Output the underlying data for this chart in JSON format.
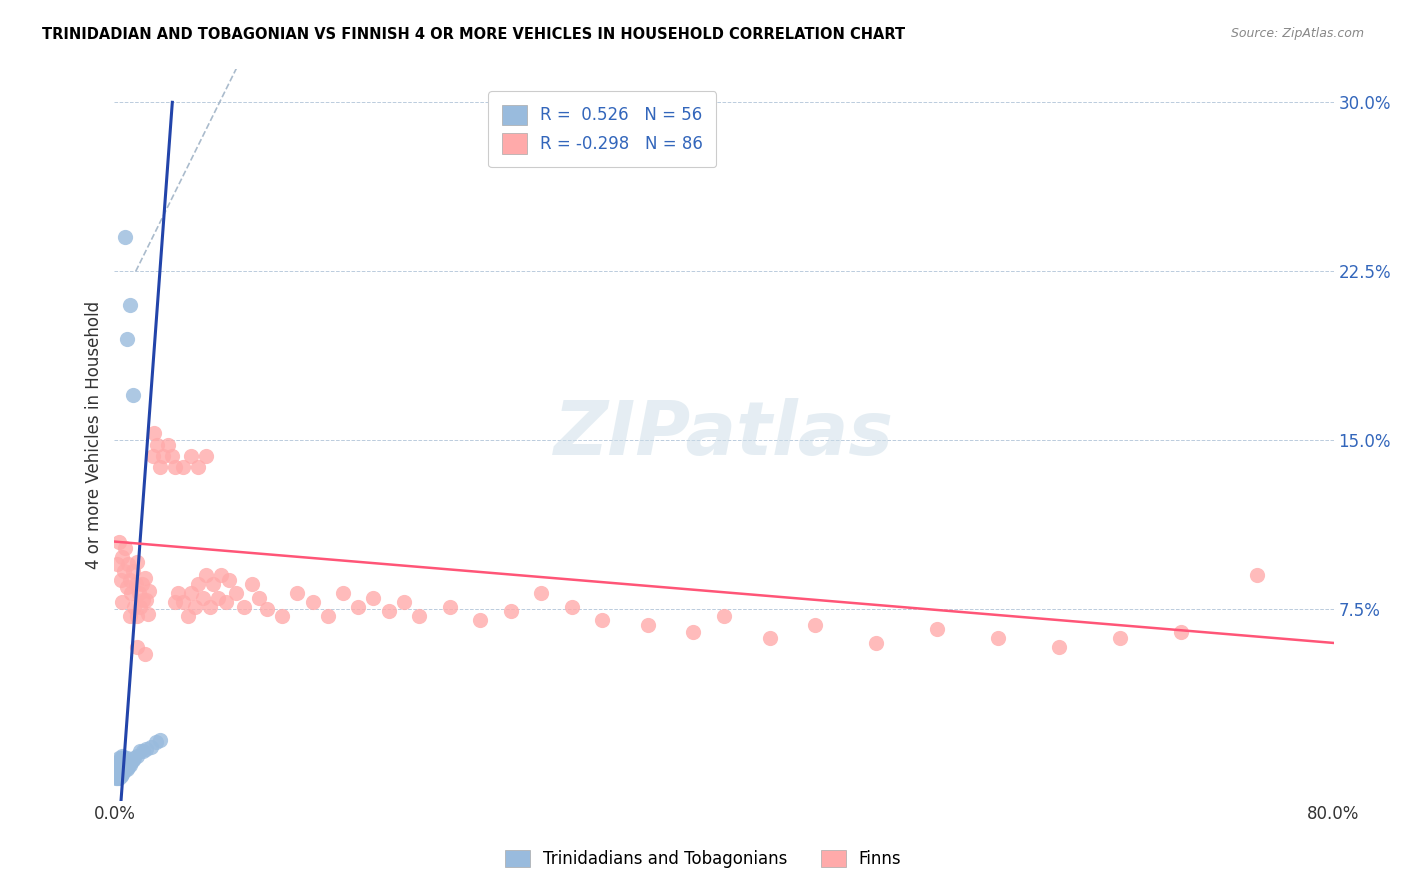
{
  "title": "TRINIDADIAN AND TOBAGONIAN VS FINNISH 4 OR MORE VEHICLES IN HOUSEHOLD CORRELATION CHART",
  "source": "Source: ZipAtlas.com",
  "ylabel": "4 or more Vehicles in Household",
  "xlim": [
    0.0,
    0.8
  ],
  "ylim": [
    -0.01,
    0.315
  ],
  "ytick_vals": [
    0.075,
    0.15,
    0.225,
    0.3
  ],
  "ytick_labels": [
    "7.5%",
    "15.0%",
    "22.5%",
    "30.0%"
  ],
  "xtick_vals": [
    0.0,
    0.1,
    0.2,
    0.3,
    0.4,
    0.5,
    0.6,
    0.7,
    0.8
  ],
  "xtick_labels": [
    "0.0%",
    "",
    "",
    "",
    "",
    "",
    "",
    "",
    "80.0%"
  ],
  "R_blue": 0.526,
  "N_blue": 56,
  "R_pink": -0.298,
  "N_pink": 86,
  "blue_color": "#99BBDD",
  "pink_color": "#FFAAAA",
  "blue_line_color": "#2244AA",
  "pink_line_color": "#FF5577",
  "dash_color": "#AABBCC",
  "watermark": "ZIPatlas",
  "legend_label_blue": "Trinidadians and Tobagonians",
  "legend_label_pink": "Finns",
  "blue_line_x": [
    0.0,
    0.038
  ],
  "blue_line_y": [
    -0.05,
    0.3
  ],
  "dash_line_x": [
    0.014,
    0.08
  ],
  "dash_line_y": [
    0.225,
    0.315
  ],
  "pink_line_x": [
    0.0,
    0.8
  ],
  "pink_line_y": [
    0.105,
    0.06
  ],
  "blue_scatter": [
    [
      0.001,
      0.001
    ],
    [
      0.001,
      0.002
    ],
    [
      0.001,
      0.003
    ],
    [
      0.001,
      0.004
    ],
    [
      0.001,
      0.0
    ],
    [
      0.002,
      0.001
    ],
    [
      0.002,
      0.002
    ],
    [
      0.002,
      0.003
    ],
    [
      0.002,
      0.005
    ],
    [
      0.002,
      0.007
    ],
    [
      0.002,
      0.0
    ],
    [
      0.003,
      0.001
    ],
    [
      0.003,
      0.002
    ],
    [
      0.003,
      0.003
    ],
    [
      0.003,
      0.005
    ],
    [
      0.003,
      0.007
    ],
    [
      0.003,
      0.009
    ],
    [
      0.003,
      0.0
    ],
    [
      0.004,
      0.001
    ],
    [
      0.004,
      0.003
    ],
    [
      0.004,
      0.005
    ],
    [
      0.004,
      0.007
    ],
    [
      0.004,
      0.009
    ],
    [
      0.005,
      0.002
    ],
    [
      0.005,
      0.004
    ],
    [
      0.005,
      0.006
    ],
    [
      0.005,
      0.008
    ],
    [
      0.005,
      0.01
    ],
    [
      0.006,
      0.003
    ],
    [
      0.006,
      0.005
    ],
    [
      0.006,
      0.007
    ],
    [
      0.006,
      0.009
    ],
    [
      0.007,
      0.004
    ],
    [
      0.007,
      0.006
    ],
    [
      0.007,
      0.008
    ],
    [
      0.008,
      0.004
    ],
    [
      0.008,
      0.006
    ],
    [
      0.008,
      0.009
    ],
    [
      0.009,
      0.005
    ],
    [
      0.009,
      0.007
    ],
    [
      0.01,
      0.006
    ],
    [
      0.01,
      0.008
    ],
    [
      0.011,
      0.007
    ],
    [
      0.012,
      0.008
    ],
    [
      0.013,
      0.009
    ],
    [
      0.015,
      0.01
    ],
    [
      0.017,
      0.012
    ],
    [
      0.019,
      0.012
    ],
    [
      0.021,
      0.013
    ],
    [
      0.024,
      0.014
    ],
    [
      0.027,
      0.016
    ],
    [
      0.03,
      0.017
    ],
    [
      0.008,
      0.195
    ],
    [
      0.01,
      0.21
    ],
    [
      0.012,
      0.17
    ],
    [
      0.007,
      0.24
    ]
  ],
  "pink_scatter": [
    [
      0.002,
      0.095
    ],
    [
      0.003,
      0.105
    ],
    [
      0.004,
      0.088
    ],
    [
      0.005,
      0.098
    ],
    [
      0.005,
      0.078
    ],
    [
      0.006,
      0.092
    ],
    [
      0.007,
      0.102
    ],
    [
      0.008,
      0.085
    ],
    [
      0.009,
      0.095
    ],
    [
      0.01,
      0.088
    ],
    [
      0.01,
      0.072
    ],
    [
      0.011,
      0.082
    ],
    [
      0.012,
      0.092
    ],
    [
      0.013,
      0.076
    ],
    [
      0.014,
      0.086
    ],
    [
      0.015,
      0.096
    ],
    [
      0.015,
      0.072
    ],
    [
      0.016,
      0.082
    ],
    [
      0.017,
      0.076
    ],
    [
      0.018,
      0.086
    ],
    [
      0.019,
      0.079
    ],
    [
      0.02,
      0.089
    ],
    [
      0.021,
      0.079
    ],
    [
      0.022,
      0.073
    ],
    [
      0.023,
      0.083
    ],
    [
      0.025,
      0.143
    ],
    [
      0.026,
      0.153
    ],
    [
      0.028,
      0.148
    ],
    [
      0.03,
      0.138
    ],
    [
      0.032,
      0.143
    ],
    [
      0.035,
      0.148
    ],
    [
      0.038,
      0.143
    ],
    [
      0.04,
      0.078
    ],
    [
      0.04,
      0.138
    ],
    [
      0.042,
      0.082
    ],
    [
      0.045,
      0.078
    ],
    [
      0.045,
      0.138
    ],
    [
      0.048,
      0.072
    ],
    [
      0.05,
      0.082
    ],
    [
      0.05,
      0.143
    ],
    [
      0.053,
      0.076
    ],
    [
      0.055,
      0.086
    ],
    [
      0.055,
      0.138
    ],
    [
      0.058,
      0.08
    ],
    [
      0.06,
      0.09
    ],
    [
      0.06,
      0.143
    ],
    [
      0.063,
      0.076
    ],
    [
      0.065,
      0.086
    ],
    [
      0.068,
      0.08
    ],
    [
      0.07,
      0.09
    ],
    [
      0.073,
      0.078
    ],
    [
      0.075,
      0.088
    ],
    [
      0.08,
      0.082
    ],
    [
      0.085,
      0.076
    ],
    [
      0.09,
      0.086
    ],
    [
      0.095,
      0.08
    ],
    [
      0.1,
      0.075
    ],
    [
      0.11,
      0.072
    ],
    [
      0.12,
      0.082
    ],
    [
      0.13,
      0.078
    ],
    [
      0.14,
      0.072
    ],
    [
      0.15,
      0.082
    ],
    [
      0.16,
      0.076
    ],
    [
      0.17,
      0.08
    ],
    [
      0.18,
      0.074
    ],
    [
      0.19,
      0.078
    ],
    [
      0.2,
      0.072
    ],
    [
      0.22,
      0.076
    ],
    [
      0.24,
      0.07
    ],
    [
      0.26,
      0.074
    ],
    [
      0.28,
      0.082
    ],
    [
      0.3,
      0.076
    ],
    [
      0.32,
      0.07
    ],
    [
      0.35,
      0.068
    ],
    [
      0.38,
      0.065
    ],
    [
      0.4,
      0.072
    ],
    [
      0.43,
      0.062
    ],
    [
      0.46,
      0.068
    ],
    [
      0.5,
      0.06
    ],
    [
      0.54,
      0.066
    ],
    [
      0.58,
      0.062
    ],
    [
      0.62,
      0.058
    ],
    [
      0.66,
      0.062
    ],
    [
      0.7,
      0.065
    ],
    [
      0.75,
      0.09
    ],
    [
      0.015,
      0.058
    ],
    [
      0.02,
      0.055
    ]
  ]
}
